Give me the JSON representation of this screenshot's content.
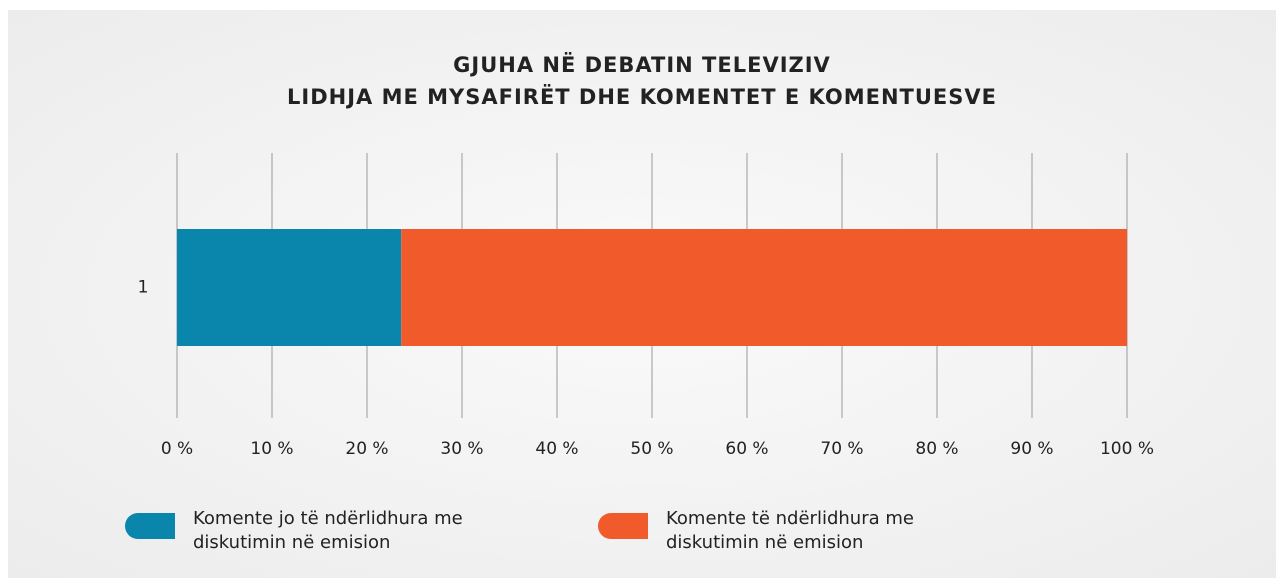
{
  "chart_data": {
    "type": "stacked-bar-horizontal",
    "title": "GJUHA NË DEBATIN TELEVIZIV",
    "subtitle": "LIDHJA ME MYSAFIRËT DHE KOMENTET E KOMENTUESVE",
    "categories": [
      "1"
    ],
    "series": [
      {
        "name": "Komente jo të ndërlidhura me diskutimin në emision",
        "color": "#0a85ab",
        "values": [
          23.6
        ]
      },
      {
        "name": "Komente të ndërlidhura me diskutimin në emision",
        "color": "#f15a2b",
        "values": [
          76.4
        ]
      }
    ],
    "xlim": [
      0,
      100
    ],
    "xticks": [
      {
        "value": 0,
        "label": "0 %"
      },
      {
        "value": 10,
        "label": "10 %"
      },
      {
        "value": 20,
        "label": "20 %"
      },
      {
        "value": 30,
        "label": "30 %"
      },
      {
        "value": 40,
        "label": "40 %"
      },
      {
        "value": 50,
        "label": "50 %"
      },
      {
        "value": 60,
        "label": "60 %"
      },
      {
        "value": 70,
        "label": "70 %"
      },
      {
        "value": 80,
        "label": "80 %"
      },
      {
        "value": 90,
        "label": "90 %"
      },
      {
        "value": 100,
        "label": "100 %"
      }
    ],
    "grid": true,
    "legend": "bottom"
  }
}
